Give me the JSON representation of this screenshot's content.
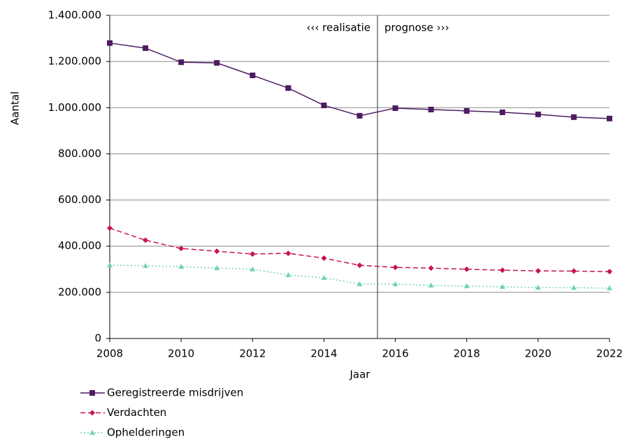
{
  "chart_data": {
    "type": "line",
    "ylabel": "Aantal",
    "xlabel": "Jaar",
    "x": [
      2008,
      2009,
      2010,
      2011,
      2012,
      2013,
      2014,
      2015,
      2016,
      2017,
      2018,
      2019,
      2020,
      2021,
      2022
    ],
    "series": [
      {
        "name": "Geregistreerde misdrijven",
        "color": "#4d1b5f",
        "marker": "square",
        "dash": "solid",
        "values": [
          1280000,
          1258000,
          1197000,
          1194000,
          1140000,
          1085000,
          1010000,
          965000,
          998000,
          992000,
          986000,
          980000,
          971000,
          959000,
          953000
        ]
      },
      {
        "name": "Verdachten",
        "color": "#c8144a",
        "marker": "diamond",
        "dash": "dashed",
        "values": [
          478000,
          426000,
          390000,
          378000,
          366000,
          369000,
          348000,
          317000,
          308000,
          305000,
          300000,
          296000,
          293000,
          292000,
          290000
        ]
      },
      {
        "name": "Ophelderingen",
        "color": "#6fd6a8",
        "marker": "triangle",
        "dash": "dotted",
        "values": [
          318000,
          315000,
          311000,
          305000,
          300000,
          275000,
          263000,
          236000,
          236000,
          230000,
          227000,
          224000,
          221000,
          220000,
          218000
        ]
      }
    ],
    "divider": {
      "x": 2015.5,
      "left_label": "‹‹‹ realisatie",
      "right_label": "prognose ›››"
    },
    "xlim": [
      2008,
      2022
    ],
    "xticks": [
      2008,
      2010,
      2012,
      2014,
      2016,
      2018,
      2020,
      2022
    ],
    "ylim": [
      0,
      1400000
    ],
    "yticks": [
      0,
      {
        "value": 200000,
        "label": "200.000"
      },
      {
        "value": 400000,
        "label": "400.000"
      },
      {
        "value": 600000,
        "label": "600.000"
      },
      {
        "value": 800000,
        "label": "800.000"
      },
      {
        "value": 1000000,
        "label": "1.000.000"
      },
      {
        "value": 1200000,
        "label": "1.200.000"
      },
      {
        "value": 1400000,
        "label": "1.400.000"
      }
    ],
    "grid": true,
    "legend": "bottom-left"
  }
}
